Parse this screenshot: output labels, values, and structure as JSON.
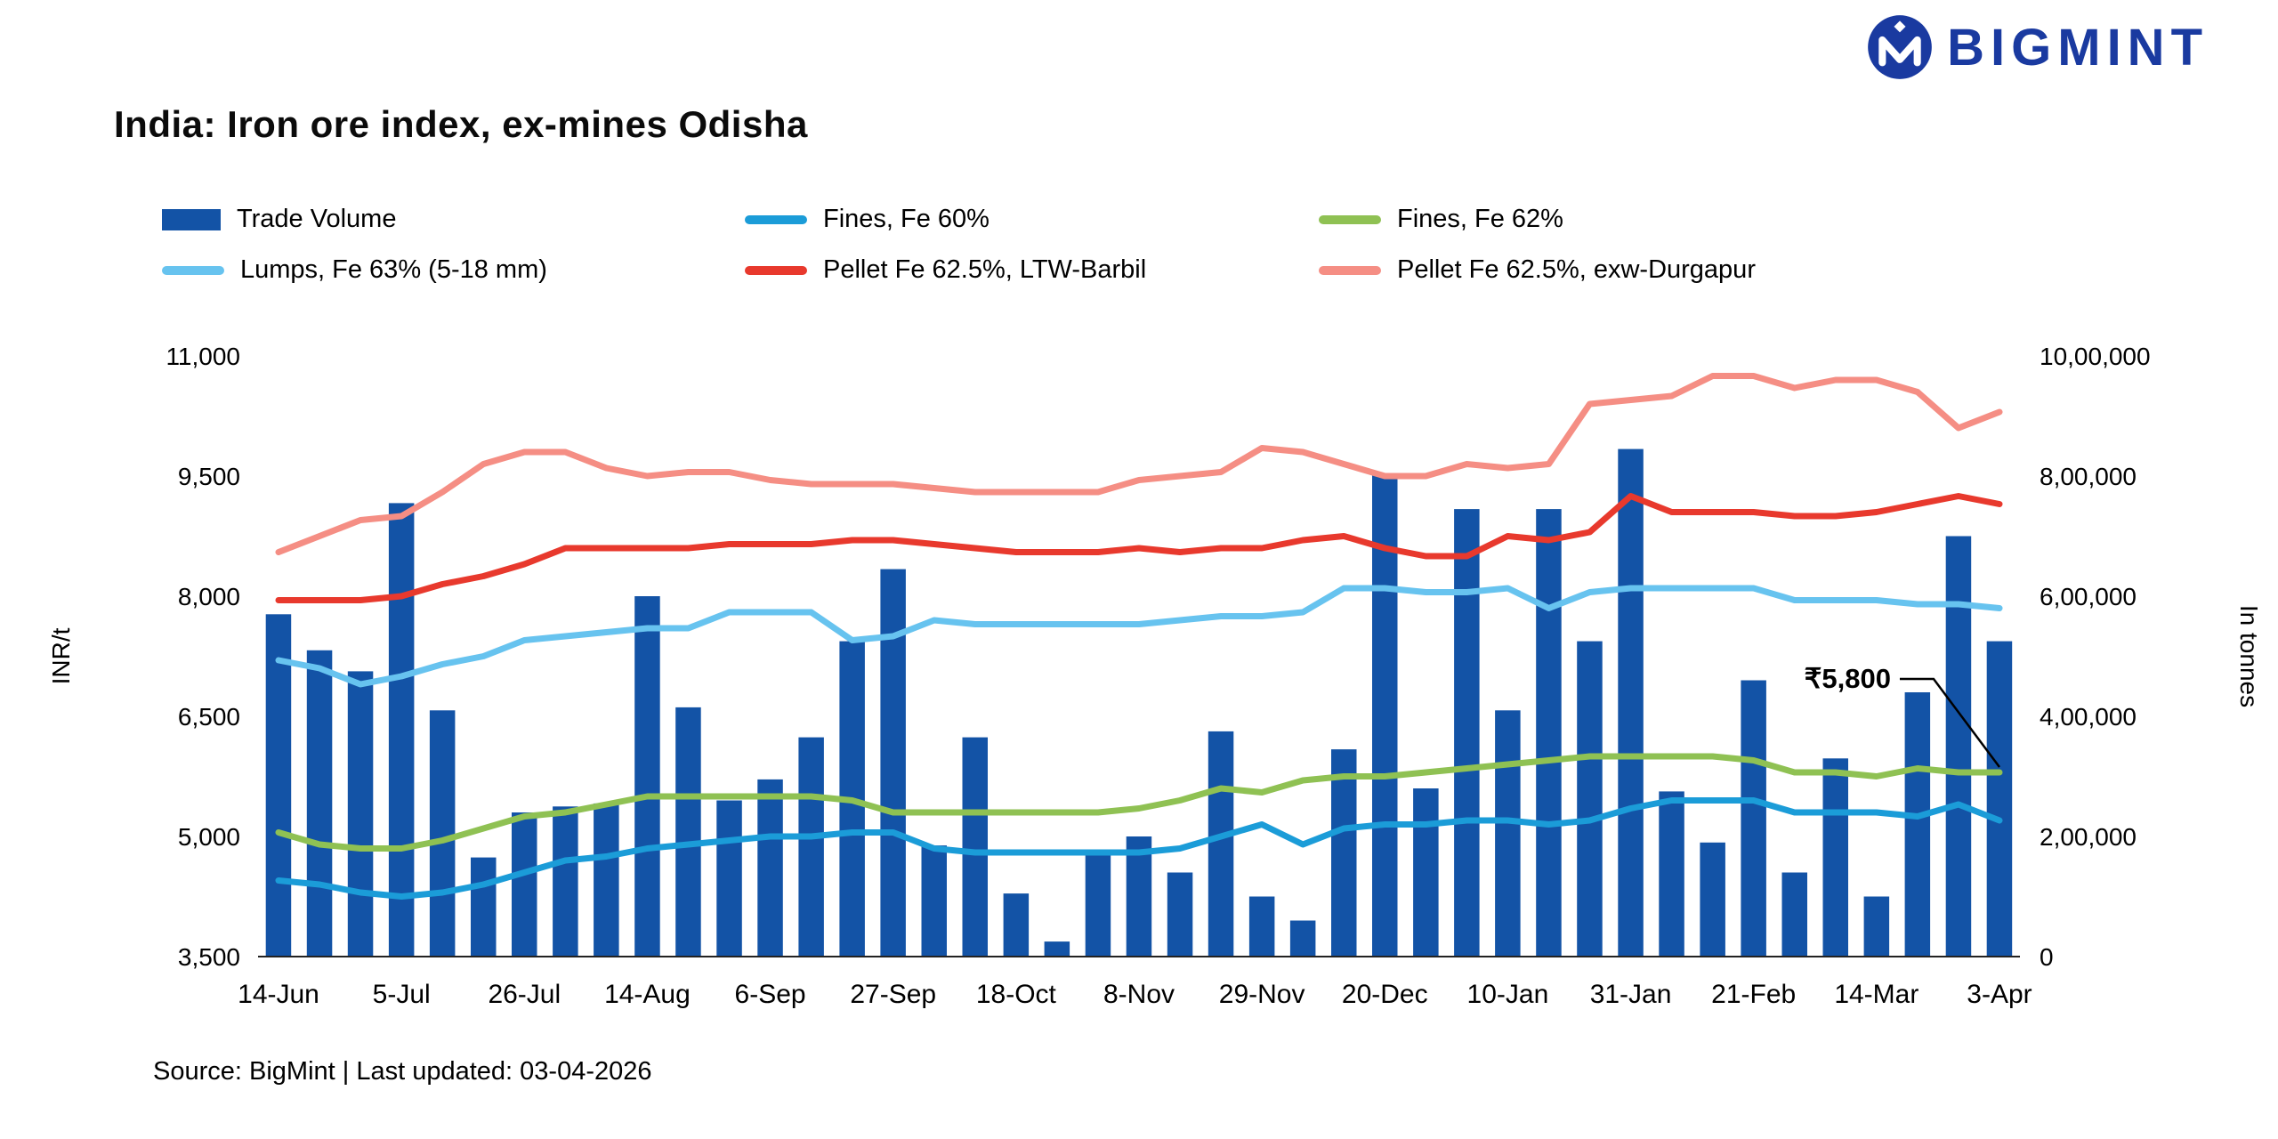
{
  "logo": {
    "brand": "BIGMINT"
  },
  "title": "India: Iron ore index, ex-mines Odisha",
  "footer": {
    "source": "Source: BigMint | Last updated: 03-04-2026"
  },
  "legend": {
    "items": [
      {
        "label": "Trade Volume",
        "type": "bar",
        "color": "#1353a6"
      },
      {
        "label": "Fines, Fe 60%",
        "type": "line",
        "color": "#1b9cd8"
      },
      {
        "label": "Fines, Fe 62%",
        "type": "line",
        "color": "#8fc153"
      },
      {
        "label": "Lumps, Fe 63% (5-18 mm)",
        "type": "line",
        "color": "#67c3ef"
      },
      {
        "label": "Pellet Fe 62.5%, LTW-Barbil",
        "type": "line",
        "color": "#e8392d"
      },
      {
        "label": "Pellet Fe  62.5%, exw-Durgapur",
        "type": "line",
        "color": "#f58e84"
      }
    ]
  },
  "chart_data": {
    "type": "combo-bar-line",
    "title": "India: Iron ore index, ex-mines Odisha",
    "n_points": 43,
    "x_tick_step": 3,
    "x_tick_labels": [
      "14-Jun",
      "5-Jul",
      "26-Jul",
      "14-Aug",
      "6-Sep",
      "27-Sep",
      "18-Oct",
      "8-Nov",
      "29-Nov",
      "20-Dec",
      "10-Jan",
      "31-Jan",
      "21-Feb",
      "14-Mar",
      "3-Apr"
    ],
    "left_axis": {
      "label": "INR/t",
      "min": 3500,
      "max": 11000,
      "ticks": [
        "3,500",
        "5,000",
        "6,500",
        "8,000",
        "9,500",
        "11,000"
      ]
    },
    "right_axis": {
      "label": "In tonnes",
      "min": 0,
      "max": 1000000,
      "ticks": [
        "0",
        "2,00,000",
        "4,00,000",
        "6,00,000",
        "8,00,000",
        "10,00,000"
      ]
    },
    "bar_series": {
      "name": "Trade Volume",
      "axis": "right",
      "color": "#1353a6",
      "values": [
        570000,
        510000,
        475000,
        755000,
        410000,
        165000,
        240000,
        250000,
        255000,
        600000,
        415000,
        260000,
        295000,
        365000,
        525000,
        645000,
        185000,
        365000,
        105000,
        25000,
        175000,
        200000,
        140000,
        375000,
        100000,
        60000,
        345000,
        805000,
        280000,
        745000,
        410000,
        745000,
        525000,
        845000,
        275000,
        190000,
        460000,
        140000,
        330000,
        100000,
        440000,
        700000,
        525000
      ]
    },
    "line_series": [
      {
        "name": "Fines, Fe 60%",
        "color": "#1b9cd8",
        "axis": "left",
        "values": [
          4450,
          4400,
          4300,
          4250,
          4300,
          4400,
          4550,
          4700,
          4750,
          4850,
          4900,
          4950,
          5000,
          5000,
          5050,
          5050,
          4850,
          4800,
          4800,
          4800,
          4800,
          4800,
          4850,
          5000,
          5150,
          4900,
          5100,
          5150,
          5150,
          5200,
          5200,
          5150,
          5200,
          5350,
          5450,
          5450,
          5450,
          5300,
          5300,
          5300,
          5250,
          5400,
          5200
        ]
      },
      {
        "name": "Fines, Fe 62%",
        "color": "#8fc153",
        "axis": "left",
        "values": [
          5050,
          4900,
          4850,
          4850,
          4950,
          5100,
          5250,
          5300,
          5400,
          5500,
          5500,
          5500,
          5500,
          5500,
          5450,
          5300,
          5300,
          5300,
          5300,
          5300,
          5300,
          5350,
          5450,
          5600,
          5550,
          5700,
          5750,
          5750,
          5800,
          5850,
          5900,
          5950,
          6000,
          6000,
          6000,
          6000,
          5950,
          5800,
          5800,
          5750,
          5850,
          5800,
          5800
        ]
      },
      {
        "name": "Lumps, Fe 63% (5-18 mm)",
        "color": "#67c3ef",
        "axis": "left",
        "values": [
          7200,
          7100,
          6900,
          7000,
          7150,
          7250,
          7450,
          7500,
          7550,
          7600,
          7600,
          7800,
          7800,
          7800,
          7450,
          7500,
          7700,
          7650,
          7650,
          7650,
          7650,
          7650,
          7700,
          7750,
          7750,
          7800,
          8100,
          8100,
          8050,
          8050,
          8100,
          7850,
          8050,
          8100,
          8100,
          8100,
          8100,
          7950,
          7950,
          7950,
          7900,
          7900,
          7850
        ]
      },
      {
        "name": "Pellet Fe 62.5%, LTW-Barbil",
        "color": "#e8392d",
        "axis": "left",
        "values": [
          7950,
          7950,
          7950,
          8000,
          8150,
          8250,
          8400,
          8600,
          8600,
          8600,
          8600,
          8650,
          8650,
          8650,
          8700,
          8700,
          8650,
          8600,
          8550,
          8550,
          8550,
          8600,
          8550,
          8600,
          8600,
          8700,
          8750,
          8600,
          8500,
          8500,
          8750,
          8700,
          8800,
          9250,
          9050,
          9050,
          9050,
          9000,
          9000,
          9050,
          9150,
          9250,
          9150
        ]
      },
      {
        "name": "Pellet Fe  62.5%, exw-Durgapur",
        "color": "#f58e84",
        "axis": "left",
        "values": [
          8550,
          8750,
          8950,
          9000,
          9300,
          9650,
          9800,
          9800,
          9600,
          9500,
          9550,
          9550,
          9450,
          9400,
          9400,
          9400,
          9350,
          9300,
          9300,
          9300,
          9300,
          9450,
          9500,
          9550,
          9850,
          9800,
          9650,
          9500,
          9500,
          9650,
          9600,
          9650,
          10400,
          10450,
          10500,
          10750,
          10750,
          10600,
          10700,
          10700,
          10550,
          10100,
          10300
        ]
      }
    ],
    "annotation": {
      "label": "₹5,800",
      "series": "Fines, Fe 62%",
      "point_index": 42,
      "value": 5800
    }
  }
}
